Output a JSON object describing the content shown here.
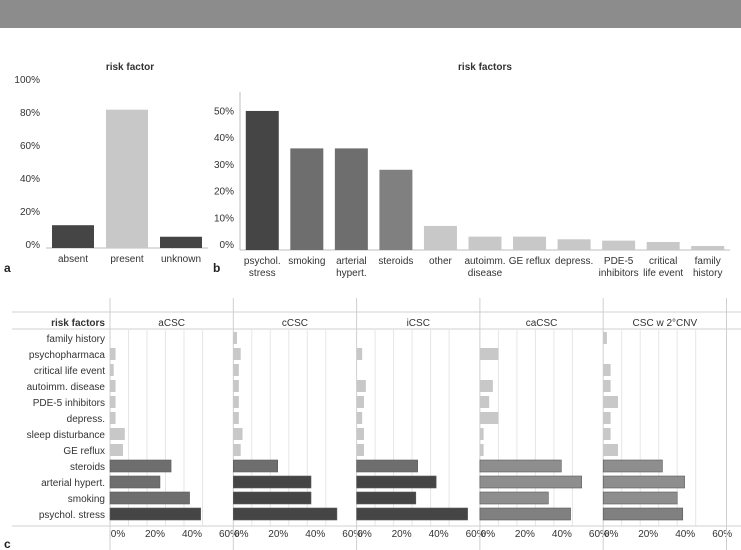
{
  "colors": {
    "header_bar": "#8c8c8c",
    "dark": "#454545",
    "mid": "#6e6e6e",
    "mid2": "#808080",
    "light": "#c8c8c8",
    "axis": "#bdbdbd",
    "grid": "#e6e6e6",
    "text": "#333333"
  },
  "panels": {
    "a": {
      "letter": "a"
    },
    "b": {
      "letter": "b"
    },
    "c": {
      "letter": "c"
    }
  },
  "chart_data": [
    {
      "id": "a",
      "type": "bar",
      "title": "risk factor",
      "categories": [
        "absent",
        "present",
        "unknown"
      ],
      "values": [
        12,
        82,
        5
      ],
      "shades": [
        "dark",
        "light",
        "dark"
      ],
      "ylim": [
        0,
        100
      ],
      "yticks": [
        0,
        20,
        40,
        60,
        80,
        100
      ],
      "ytick_labels": [
        "0%",
        "20%",
        "40%",
        "60%",
        "80%",
        "100%"
      ]
    },
    {
      "id": "b",
      "type": "bar",
      "title": "risk factors",
      "categories": [
        [
          "psychol.",
          "stress"
        ],
        [
          "smoking"
        ],
        [
          "arterial",
          "hypert."
        ],
        [
          "steroids"
        ],
        [
          "other"
        ],
        [
          "autoimm.",
          "disease"
        ],
        [
          "GE reflux"
        ],
        [
          "depress."
        ],
        [
          "PDE-5",
          "inhibitors"
        ],
        [
          "critical",
          "life event"
        ],
        [
          "family",
          "history"
        ]
      ],
      "values": [
        52,
        38,
        38,
        30,
        9,
        5,
        5,
        4,
        3.5,
        3,
        1.5
      ],
      "shades": [
        "dark",
        "mid",
        "mid",
        "mid2",
        "light",
        "light",
        "light",
        "light",
        "light",
        "light",
        "light"
      ],
      "ylim": [
        0,
        55
      ],
      "yticks": [
        0,
        10,
        20,
        30,
        40,
        50
      ],
      "ytick_labels": [
        "0%",
        "10%",
        "20%",
        "30%",
        "40%",
        "50%"
      ]
    },
    {
      "id": "c",
      "type": "bar",
      "orientation": "horizontal",
      "row_header": "risk factors",
      "rows": [
        "family history",
        "psychopharmaca",
        "critical life event",
        "autoimm. disease",
        "PDE-5 inhibitors",
        "depress.",
        "sleep disturbance",
        "GE reflux",
        "steroids",
        "arterial hypert.",
        "smoking",
        "psychol. stress"
      ],
      "row_shades": [
        "light",
        "light",
        "light",
        "light",
        "light",
        "light",
        "light",
        "light",
        "mid",
        "mid",
        "mid",
        "dark"
      ],
      "xlim": [
        0,
        60
      ],
      "xticks": [
        0,
        20,
        40,
        60
      ],
      "xtick_labels": [
        "0%",
        "20%",
        "40%",
        "60%"
      ],
      "series": [
        {
          "name": "aCSC",
          "values": [
            0,
            3,
            2,
            3,
            3,
            3,
            8,
            7,
            33,
            27,
            43,
            49
          ],
          "shade_set": "a"
        },
        {
          "name": "cCSC",
          "values": [
            2,
            4,
            3,
            3,
            3,
            3,
            5,
            4,
            24,
            42,
            42,
            56
          ],
          "shade_set": "c"
        },
        {
          "name": "iCSC",
          "values": [
            0,
            3,
            0,
            5,
            4,
            3,
            4,
            4,
            33,
            43,
            32,
            60
          ],
          "shade_set": "i"
        },
        {
          "name": "caCSC",
          "values": [
            0,
            10,
            0,
            7,
            5,
            10,
            2,
            2,
            44,
            55,
            37,
            49
          ],
          "shade_set": "ca"
        },
        {
          "name": "CSC w 2°CNV",
          "values": [
            2,
            0,
            4,
            4,
            8,
            4,
            4,
            8,
            32,
            44,
            40,
            43
          ],
          "shade_set": "cnv"
        }
      ]
    }
  ]
}
